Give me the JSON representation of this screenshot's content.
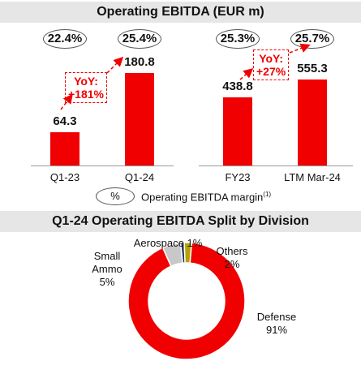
{
  "top_chart": {
    "title": "Operating EBITDA (EUR m)"
  },
  "chart_data": [
    {
      "type": "bar",
      "categories": [
        "Q1-23",
        "Q1-24"
      ],
      "values": [
        64.3,
        180.8
      ],
      "value_labels": [
        "64.3",
        "180.8"
      ],
      "margins": [
        "22.4%",
        "25.4%"
      ],
      "yoy_label": "YoY:\n+181%",
      "color": "#f00000"
    },
    {
      "type": "bar",
      "categories": [
        "FY23",
        "LTM Mar-24"
      ],
      "values": [
        438.8,
        555.3
      ],
      "value_labels": [
        "438.8",
        "555.3"
      ],
      "margins": [
        "25.3%",
        "25.7%"
      ],
      "yoy_label": "YoY:\n+27%",
      "color": "#f00000"
    },
    {
      "type": "pie",
      "title": "Q1-24 Operating EBITDA Split by Division",
      "donut": true,
      "slices": [
        {
          "label": "Defense",
          "pct": "91%",
          "value": 91,
          "color": "#f00000"
        },
        {
          "label": "Small\nAmmo",
          "pct": "5%",
          "value": 5,
          "color": "#c8c8c8"
        },
        {
          "label": "Aerospace",
          "pct": "1%",
          "value": 1,
          "color": "#1f3864"
        },
        {
          "label": "Others",
          "pct": "2%",
          "value": 2,
          "color": "#b8a100"
        }
      ]
    }
  ],
  "legend": {
    "symbol": "%",
    "text": "Operating EBITDA margin",
    "footnote": "(1)"
  }
}
